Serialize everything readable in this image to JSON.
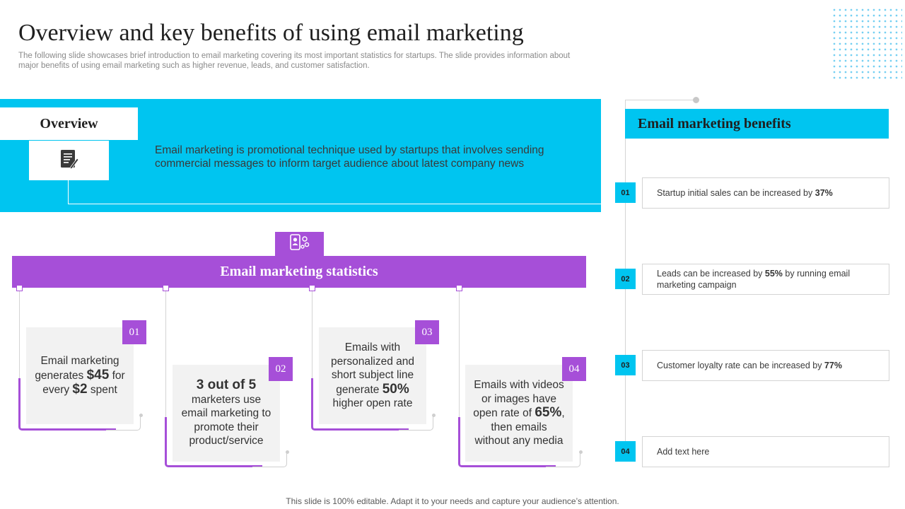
{
  "header": {
    "title": "Overview and key benefits of using email marketing",
    "subtitle": "The following slide showcases brief introduction to email marketing covering its most important statistics for startups. The slide provides information about major benefits of using email marketing such as higher revenue, leads, and customer satisfaction."
  },
  "overview": {
    "label": "Overview",
    "text": "Email marketing is promotional technique used by startups that involves sending commercial messages to inform target audience about latest company news",
    "icon": "document-icon"
  },
  "stats": {
    "title": "Email marketing statistics",
    "icon": "email-contact-icon",
    "cards": [
      {
        "num": "01",
        "parts": [
          "Email marketing generates ",
          "$45",
          " for every ",
          "$2",
          " spent"
        ]
      },
      {
        "num": "02",
        "parts": [
          "3 out of 5",
          " marketers use email marketing to promote their product/service"
        ]
      },
      {
        "num": "03",
        "parts": [
          "Emails with personalized and short subject line generate ",
          "50%",
          " higher open rate"
        ]
      },
      {
        "num": "04",
        "parts": [
          "Emails with videos or images have open rate of ",
          "65%",
          ", then emails without any media"
        ]
      }
    ]
  },
  "benefits": {
    "title": "Email marketing  benefits",
    "items": [
      {
        "num": "01",
        "text": "Startup initial sales can be increased by ",
        "bold": "37%",
        "tail": ""
      },
      {
        "num": "02",
        "text": "Leads can be increased by ",
        "bold": "55%",
        "tail": " by running email marketing campaign"
      },
      {
        "num": "03",
        "text": "Customer loyalty rate can be increased by ",
        "bold": "77%",
        "tail": ""
      },
      {
        "num": "04",
        "text": "Add text here",
        "bold": "",
        "tail": ""
      }
    ]
  },
  "footer": "This slide is 100% editable. Adapt it to your needs and capture your audience’s attention.",
  "colors": {
    "cyan": "#00c5f0",
    "purple": "#a64fd8",
    "card": "#f2f2f2"
  }
}
